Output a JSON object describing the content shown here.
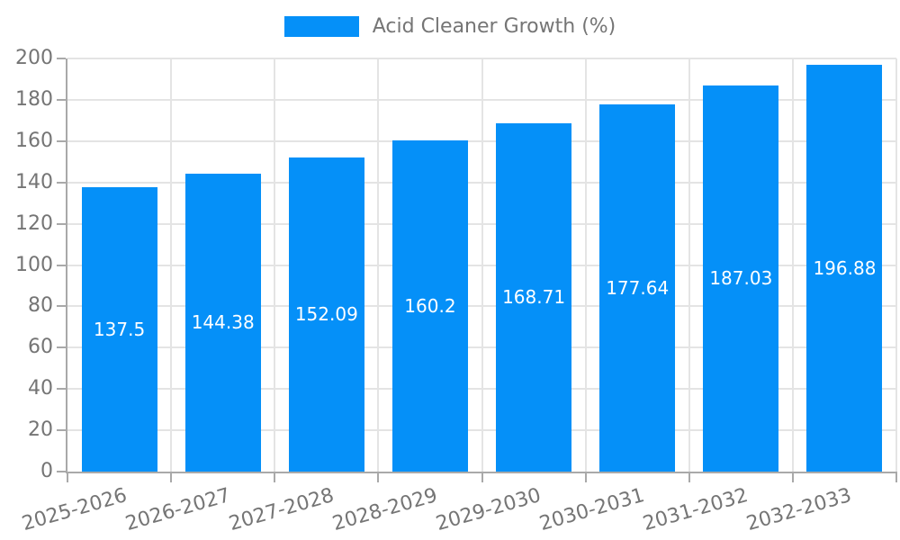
{
  "legend": {
    "label": "Acid Cleaner Growth (%)"
  },
  "chart_data": {
    "type": "bar",
    "title": "",
    "xlabel": "",
    "ylabel": "",
    "categories": [
      "2025-2026",
      "2026-2027",
      "2027-2028",
      "2028-2029",
      "2029-2030",
      "2030-2031",
      "2031-2032",
      "2032-2033"
    ],
    "values": [
      137.5,
      144.38,
      152.09,
      160.2,
      168.71,
      177.64,
      187.03,
      196.88
    ],
    "value_labels": [
      "137.5",
      "144.38",
      "152.09",
      "160.2",
      "168.71",
      "177.64",
      "187.03",
      "196.88"
    ],
    "series_name": "Acid Cleaner Growth (%)",
    "ylim": [
      0,
      200
    ],
    "yticks": [
      "0",
      "20",
      "40",
      "60",
      "80",
      "100",
      "120",
      "140",
      "160",
      "180",
      "200"
    ],
    "grid": true,
    "legend_position": "top-center",
    "value_label_position": "bar-center",
    "x_label_rotation_deg": -16,
    "colors": {
      "bar": "#0590f8",
      "value_label": "#ffffff",
      "axis": "#a9a9a9",
      "grid": "#e4e4e4",
      "tick_text": "#757575"
    }
  }
}
